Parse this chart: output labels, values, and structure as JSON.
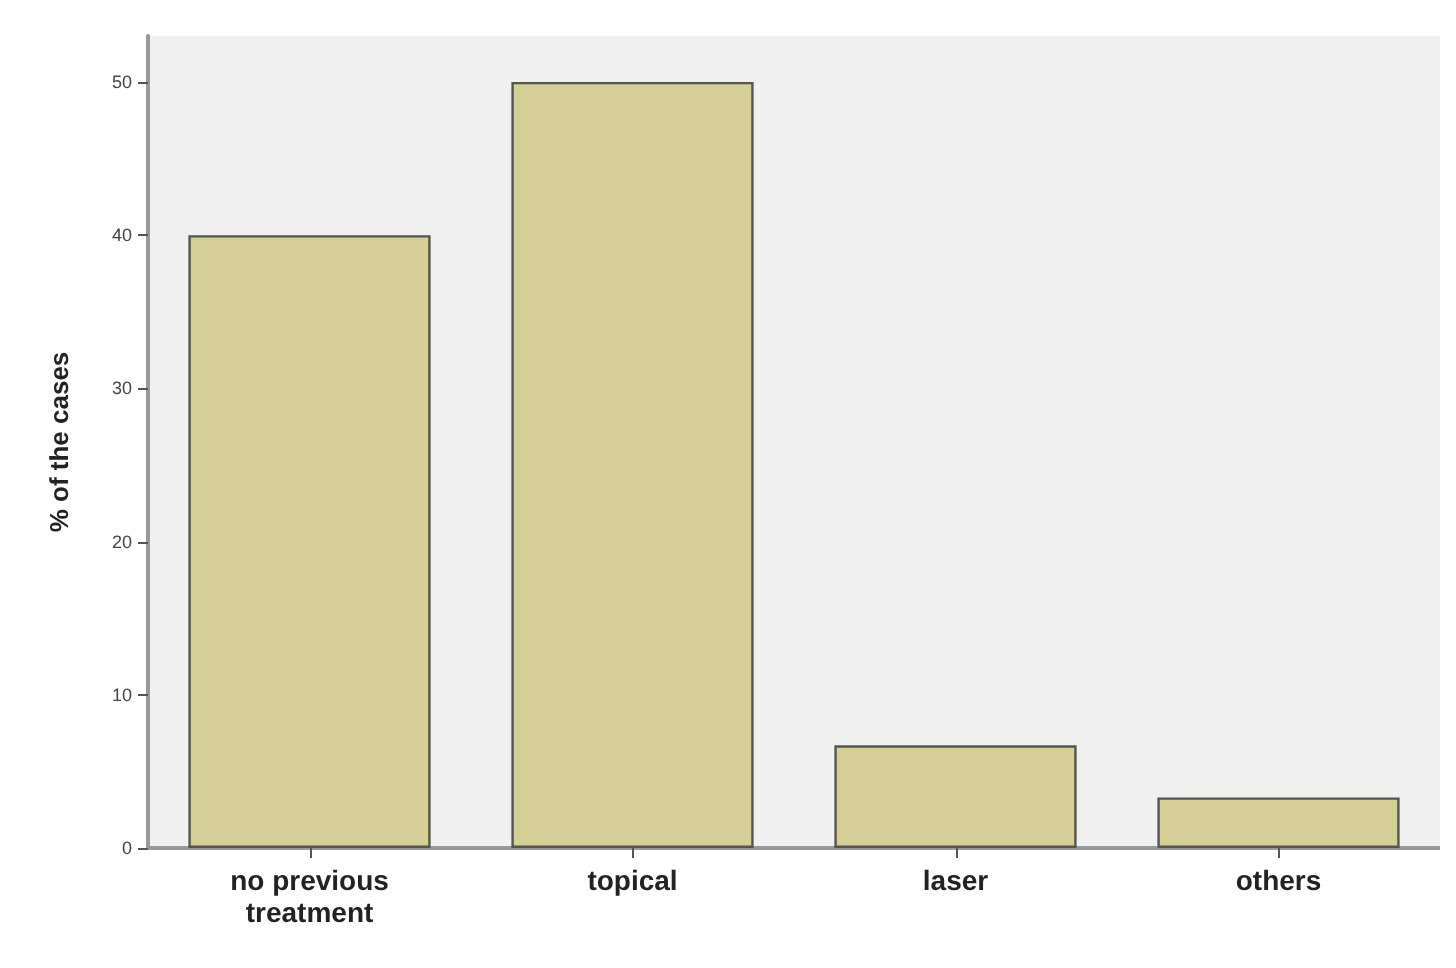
{
  "chart_data": {
    "type": "bar",
    "ylabel": "% of the cases",
    "categories": [
      "no previous\ntreatment",
      "topical",
      "laser",
      "others"
    ],
    "values": [
      40,
      50,
      6.7,
      3.3
    ],
    "color": "#d3cf96",
    "ylim": [
      0,
      53
    ],
    "yticks": [
      0,
      10,
      20,
      30,
      40,
      50
    ],
    "grid": false
  }
}
